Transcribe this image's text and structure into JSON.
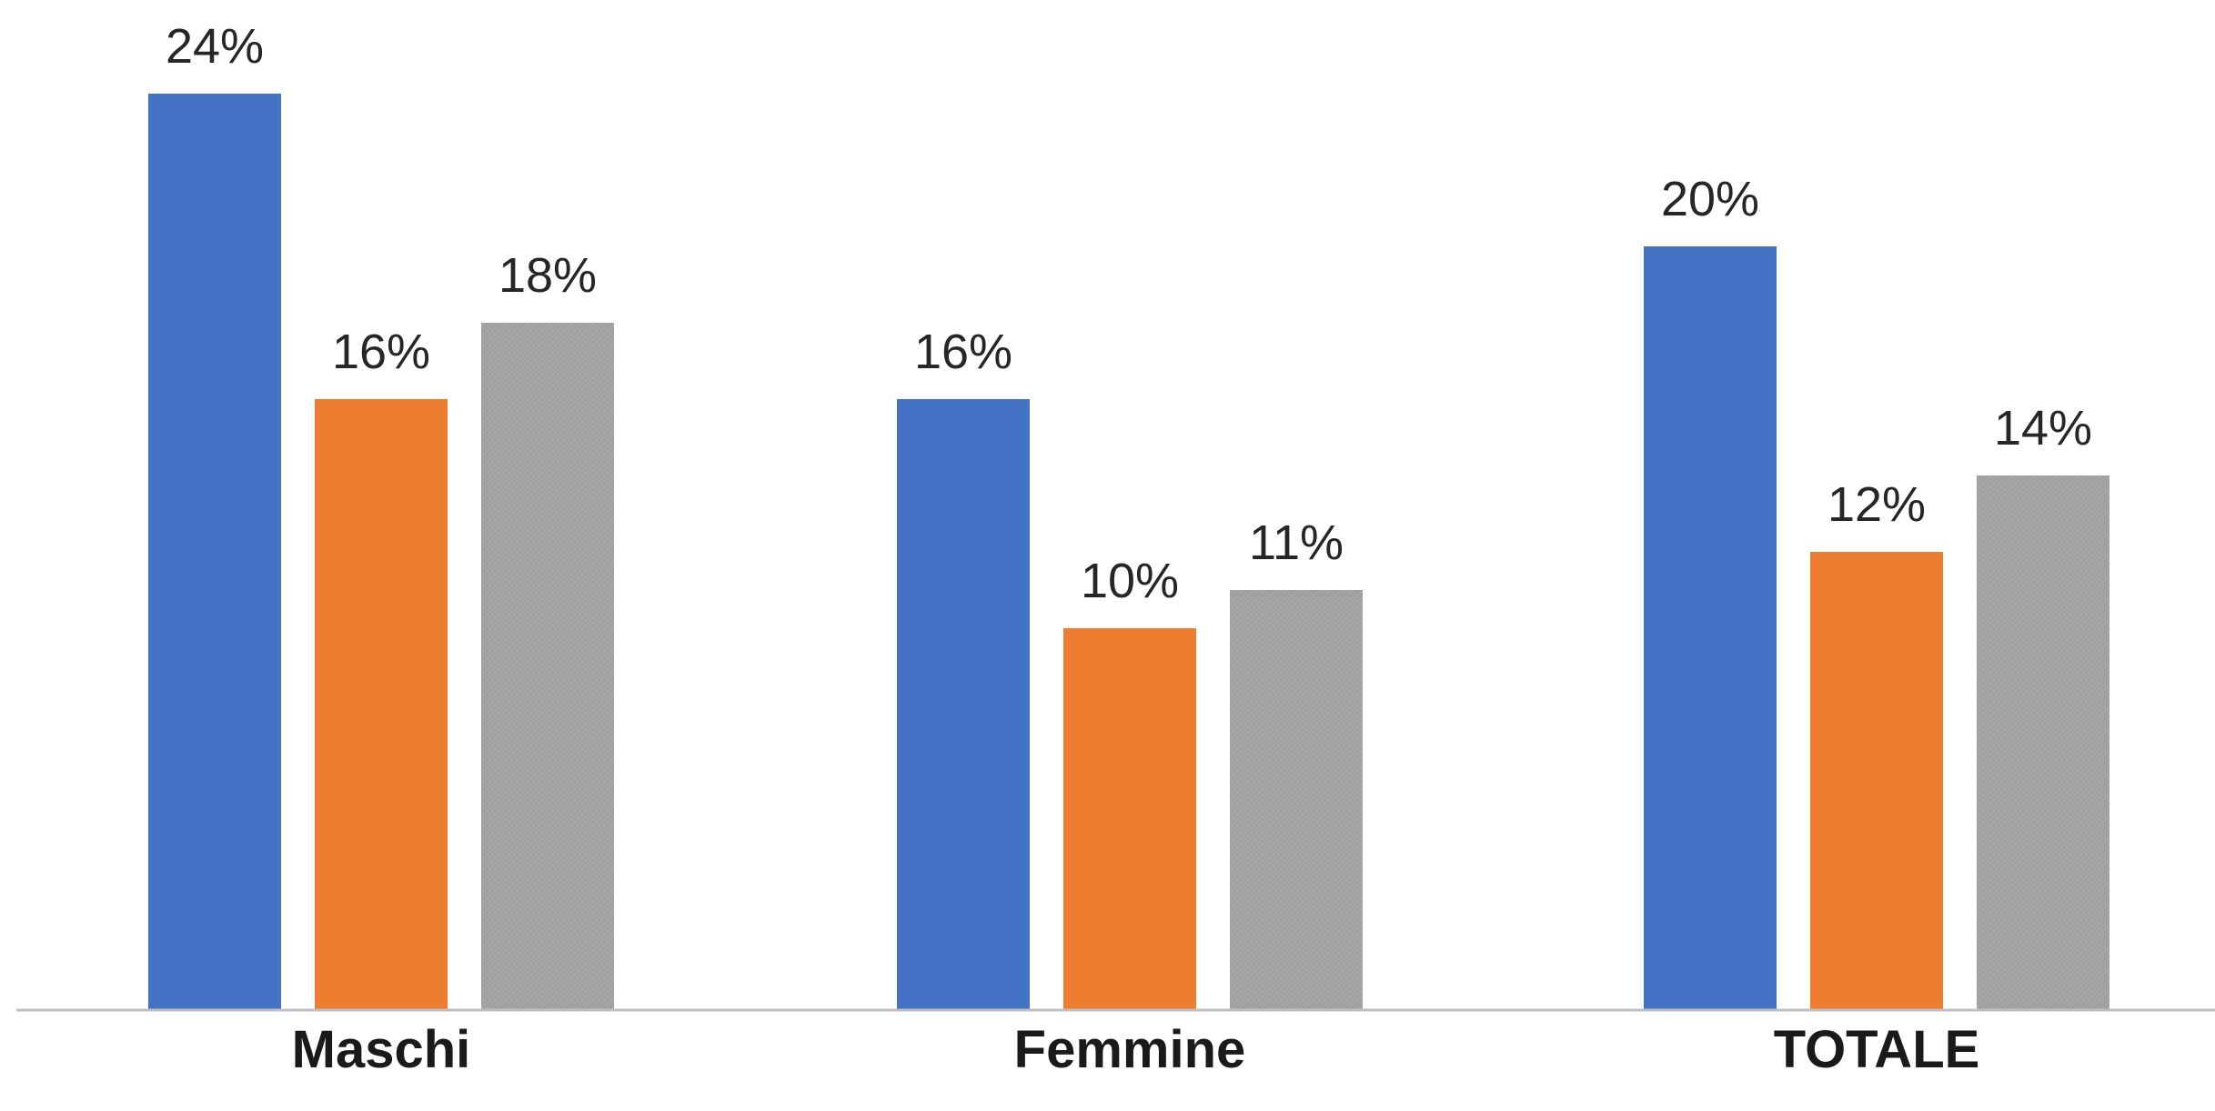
{
  "chart_data": {
    "type": "bar",
    "categories": [
      "Maschi",
      "Femmine",
      "TOTALE"
    ],
    "series": [
      {
        "values": [
          24,
          16,
          20
        ],
        "labels": [
          "24%",
          "16%",
          "20%"
        ],
        "color": "#4472C4"
      },
      {
        "values": [
          16,
          10,
          12
        ],
        "labels": [
          "16%",
          "10%",
          "12%"
        ],
        "color": "#ED7D31"
      },
      {
        "values": [
          18,
          11,
          14
        ],
        "labels": [
          "18%",
          "11%",
          "14%"
        ],
        "color": "#A5A5A5"
      }
    ],
    "value_format": "percent",
    "ylim": [
      0,
      25
    ],
    "grid": false,
    "legend": "none",
    "axis_line_color": "#BFBFBF",
    "label_color": "#262626"
  }
}
